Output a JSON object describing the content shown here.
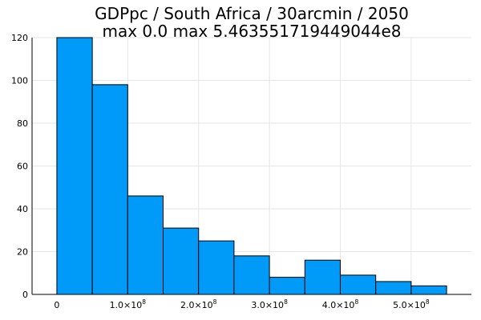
{
  "chart_data": {
    "type": "bar",
    "title": "GDPpc / South Africa / 30arcmin / 2050",
    "subtitle": "max 0.0  max 5.463551719449044e8",
    "xlabel": "",
    "ylabel": "",
    "bar_color": "#009af9",
    "grid": true,
    "legend": "none",
    "xlim": [
      -35000000.0,
      585000000.0
    ],
    "ylim": [
      0,
      120
    ],
    "y_ticks": [
      0,
      20,
      40,
      60,
      80,
      100,
      120
    ],
    "x_ticks": [
      {
        "value": 0,
        "label": "0",
        "exponent": ""
      },
      {
        "value": 100000000,
        "label": "1.0×10",
        "exponent": "8"
      },
      {
        "value": 200000000,
        "label": "2.0×10",
        "exponent": "8"
      },
      {
        "value": 300000000,
        "label": "3.0×10",
        "exponent": "8"
      },
      {
        "value": 400000000,
        "label": "4.0×10",
        "exponent": "8"
      },
      {
        "value": 500000000,
        "label": "5.0×10",
        "exponent": "8"
      }
    ],
    "bins": [
      {
        "x0": 0,
        "x1": 50000000,
        "count": 120
      },
      {
        "x0": 50000000,
        "x1": 100000000,
        "count": 98
      },
      {
        "x0": 100000000,
        "x1": 150000000,
        "count": 46
      },
      {
        "x0": 150000000,
        "x1": 200000000,
        "count": 31
      },
      {
        "x0": 200000000,
        "x1": 250000000,
        "count": 25
      },
      {
        "x0": 250000000,
        "x1": 300000000,
        "count": 18
      },
      {
        "x0": 300000000,
        "x1": 350000000,
        "count": 8
      },
      {
        "x0": 350000000,
        "x1": 400000000,
        "count": 16
      },
      {
        "x0": 400000000,
        "x1": 450000000,
        "count": 9
      },
      {
        "x0": 450000000,
        "x1": 500000000,
        "count": 6
      },
      {
        "x0": 500000000,
        "x1": 550000000,
        "count": 4
      }
    ]
  }
}
